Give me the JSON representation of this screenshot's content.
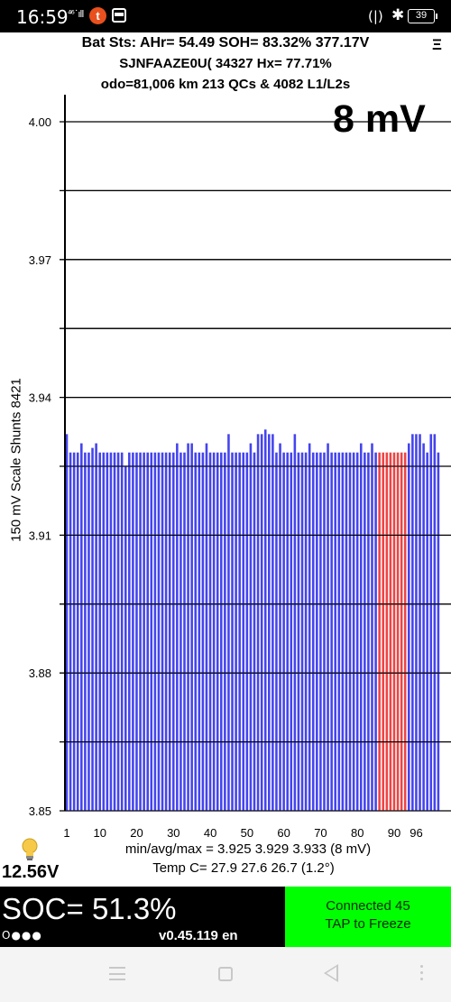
{
  "status_bar": {
    "time": "16:59",
    "network": "⁴⁶˙ıll",
    "notification_letter": "t",
    "vibrate": "(|)",
    "bluetooth": "✱",
    "battery": "39"
  },
  "header": {
    "line1": "Bat Sts: AHr= 54.49 SOH= 83.32% 377.17V",
    "line2": "SJNFAAZE0U(    34327   Hx= 77.71%",
    "line3": "odo=81,006 km 213 QCs & 4082 L1/L2s",
    "menu_icon": "Ξ"
  },
  "delta_label": "8 mV",
  "y_axis_title": "150 mV Scale   Shunts 8421",
  "chart_data": {
    "type": "bar",
    "ylim": [
      3.85,
      4.0
    ],
    "y_ticks": [
      "4.00",
      "3.97",
      "3.94",
      "3.91",
      "3.88",
      "3.85"
    ],
    "x_ticks": [
      "1",
      "10",
      "20",
      "30",
      "40",
      "50",
      "60",
      "70",
      "80",
      "90",
      "96"
    ],
    "x_tick_positions": [
      1,
      10,
      20,
      30,
      40,
      50,
      60,
      70,
      80,
      90,
      96
    ],
    "red_indices": [
      86,
      87,
      88,
      89,
      90,
      91,
      92,
      93
    ],
    "colors": {
      "normal": "#4444ee",
      "shunted": "#ee4444"
    },
    "values": [
      3.932,
      3.928,
      3.928,
      3.928,
      3.93,
      3.928,
      3.928,
      3.929,
      3.93,
      3.928,
      3.928,
      3.928,
      3.928,
      3.928,
      3.928,
      3.928,
      3.925,
      3.928,
      3.928,
      3.928,
      3.928,
      3.928,
      3.928,
      3.928,
      3.928,
      3.928,
      3.928,
      3.928,
      3.928,
      3.928,
      3.93,
      3.928,
      3.928,
      3.93,
      3.93,
      3.928,
      3.928,
      3.928,
      3.93,
      3.928,
      3.928,
      3.928,
      3.928,
      3.928,
      3.932,
      3.928,
      3.928,
      3.928,
      3.928,
      3.928,
      3.93,
      3.928,
      3.932,
      3.932,
      3.933,
      3.932,
      3.932,
      3.928,
      3.93,
      3.928,
      3.928,
      3.928,
      3.932,
      3.928,
      3.928,
      3.928,
      3.93,
      3.928,
      3.928,
      3.928,
      3.928,
      3.93,
      3.928,
      3.928,
      3.928,
      3.928,
      3.928,
      3.928,
      3.928,
      3.928,
      3.93,
      3.928,
      3.928,
      3.93,
      3.928,
      3.928,
      3.928,
      3.928,
      3.928,
      3.928,
      3.928,
      3.928,
      3.928,
      3.93,
      3.932,
      3.932,
      3.932,
      3.93,
      3.928,
      3.932,
      3.932,
      3.928
    ]
  },
  "stats": {
    "minavgmax": "min/avg/max = 3.925 3.929 3.933  (8 mV)",
    "temp": "Temp C= 27.9  27.6  26.7  (1.2°)"
  },
  "aux_voltage": "12.56V",
  "soc": {
    "text": "SOC= 51.3%",
    "dots": "O●●●",
    "version": "v0.45.119 en"
  },
  "connect_button": {
    "line1": "Connected 45",
    "line2": "TAP to Freeze"
  }
}
